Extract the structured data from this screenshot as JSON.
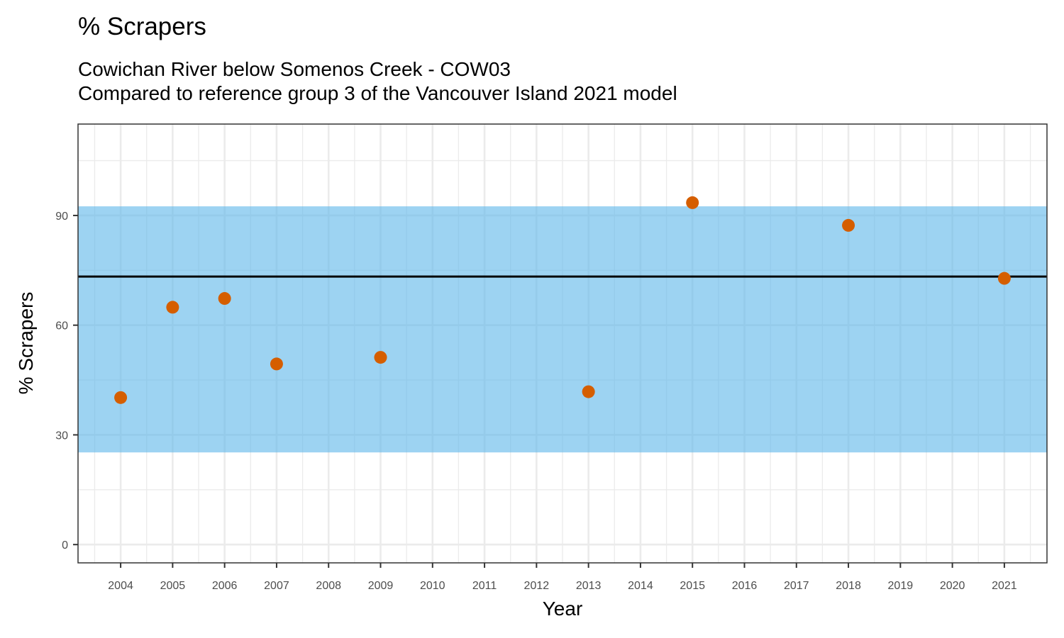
{
  "chart_data": {
    "type": "scatter",
    "title": "% Scrapers",
    "subtitle_lines": [
      "Cowichan River below Somenos Creek - COW03",
      "Compared to reference group 3 of the Vancouver Island 2021 model"
    ],
    "xlabel": "Year",
    "ylabel": "% Scrapers",
    "x_ticks": [
      2004,
      2005,
      2006,
      2007,
      2008,
      2009,
      2010,
      2011,
      2012,
      2013,
      2014,
      2015,
      2016,
      2017,
      2018,
      2019,
      2020,
      2021
    ],
    "xlim": [
      2003.18,
      2021.82
    ],
    "y_ticks": [
      0,
      30,
      60,
      90
    ],
    "ylim": [
      -5,
      115
    ],
    "grid": true,
    "reference_band": {
      "low": 25.2,
      "high": 92.5,
      "color": "#56b4e9"
    },
    "reference_line": {
      "value": 73.3,
      "color": "#000000"
    },
    "series": [
      {
        "color": "#d55e00",
        "points": [
          {
            "x": 2004,
            "y": 40.2
          },
          {
            "x": 2005,
            "y": 64.9
          },
          {
            "x": 2006,
            "y": 67.3
          },
          {
            "x": 2007,
            "y": 49.4
          },
          {
            "x": 2009,
            "y": 51.2
          },
          {
            "x": 2013,
            "y": 41.8
          },
          {
            "x": 2015,
            "y": 93.5
          },
          {
            "x": 2018,
            "y": 87.3
          },
          {
            "x": 2021,
            "y": 72.8
          }
        ]
      }
    ]
  }
}
